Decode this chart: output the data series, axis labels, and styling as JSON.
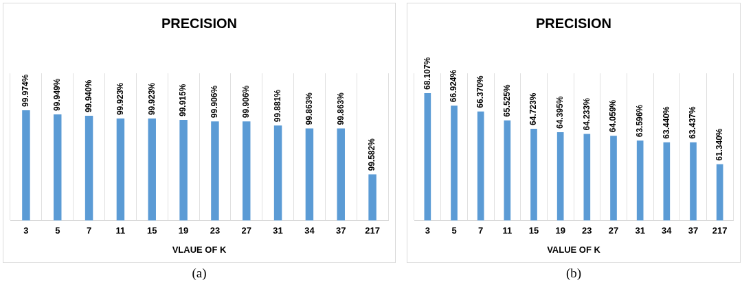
{
  "chart_data": [
    {
      "type": "bar",
      "title": "PRECISION",
      "xlabel": "VLAUE OF K",
      "categories": [
        "3",
        "5",
        "7",
        "11",
        "15",
        "19",
        "23",
        "27",
        "31",
        "34",
        "37",
        "217"
      ],
      "values": [
        99.974,
        99.949,
        99.94,
        99.923,
        99.923,
        99.915,
        99.906,
        99.906,
        99.881,
        99.863,
        99.863,
        99.582
      ],
      "value_labels": [
        "99.974%",
        "99.949%",
        "99.940%",
        "99.923%",
        "99.923%",
        "99.915%",
        "99.906%",
        "99.906%",
        "99.881%",
        "99.863%",
        "99.863%",
        "99.582%"
      ],
      "color": "#5b9bd5",
      "ylim": [
        99.3,
        100.2
      ],
      "tick_labels": "x",
      "grid": "x",
      "legend": false,
      "annotations": [
        "(a)"
      ]
    },
    {
      "type": "bar",
      "title": "PRECISION",
      "xlabel": "VALUE OF K",
      "categories": [
        "3",
        "5",
        "7",
        "11",
        "15",
        "19",
        "23",
        "27",
        "31",
        "34",
        "37",
        "217"
      ],
      "values": [
        68.107,
        66.924,
        66.37,
        65.525,
        64.723,
        64.395,
        64.233,
        64.059,
        63.596,
        63.44,
        63.437,
        61.34
      ],
      "value_labels": [
        "68.107%",
        "66.924%",
        "66.370%",
        "65.525%",
        "64.723%",
        "64.395%",
        "64.233%",
        "64.059%",
        "63.596%",
        "63.440%",
        "63.437%",
        "61.340%"
      ],
      "color": "#5b9bd5",
      "ylim": [
        56,
        70
      ],
      "tick_labels": "x",
      "grid": "x",
      "legend": false,
      "annotations": [
        "(b)"
      ]
    }
  ]
}
